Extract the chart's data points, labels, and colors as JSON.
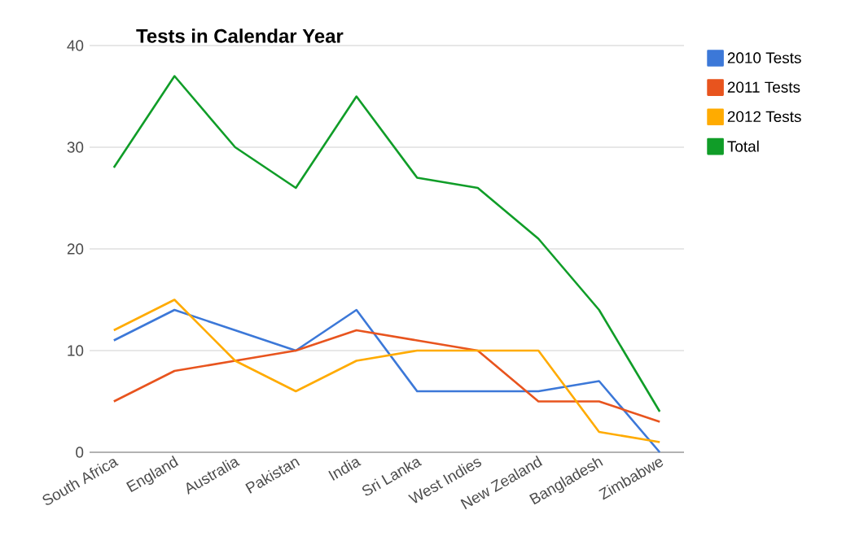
{
  "chart_data": {
    "type": "line",
    "title": "Tests in Calendar Year",
    "categories": [
      "South Africa",
      "England",
      "Australia",
      "Pakistan",
      "India",
      "Sri Lanka",
      "West Indies",
      "New Zealand",
      "Bangladesh",
      "Zimbabwe"
    ],
    "series": [
      {
        "name": "2010 Tests",
        "color": "#3c78d8",
        "values": [
          11,
          14,
          12,
          10,
          14,
          6,
          6,
          6,
          7,
          0
        ]
      },
      {
        "name": "2011 Tests",
        "color": "#e8541e",
        "values": [
          5,
          8,
          9,
          10,
          12,
          11,
          10,
          5,
          5,
          3
        ]
      },
      {
        "name": "2012 Tests",
        "color": "#ffab00",
        "values": [
          12,
          15,
          9,
          6,
          9,
          10,
          10,
          10,
          2,
          1
        ]
      },
      {
        "name": "Total",
        "color": "#109d28",
        "values": [
          28,
          37,
          30,
          26,
          35,
          27,
          26,
          21,
          14,
          4
        ]
      }
    ],
    "ylim": [
      0,
      40
    ],
    "yticks": [
      0,
      10,
      20,
      30,
      40
    ],
    "grid": "y",
    "legend": "right",
    "marker": "none",
    "line_style": "solid"
  }
}
